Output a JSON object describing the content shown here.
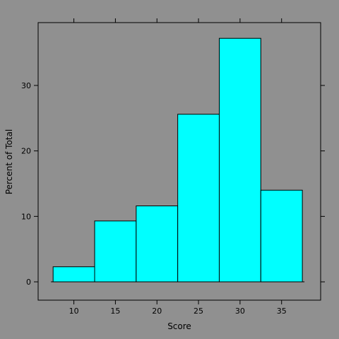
{
  "chart_data": {
    "type": "bar",
    "xlabel": "Score",
    "ylabel": "Percent of Total",
    "bins": [
      {
        "start": 7.5,
        "end": 12.5,
        "value": 2.3
      },
      {
        "start": 12.5,
        "end": 17.5,
        "value": 9.3
      },
      {
        "start": 17.5,
        "end": 22.5,
        "value": 11.6
      },
      {
        "start": 22.5,
        "end": 27.5,
        "value": 25.6
      },
      {
        "start": 27.5,
        "end": 32.5,
        "value": 37.2
      },
      {
        "start": 32.5,
        "end": 37.5,
        "value": 14.0
      }
    ],
    "xlim": [
      5.7,
      39.7
    ],
    "ylim": [
      -2.8,
      39.6
    ],
    "xticks": [
      10,
      15,
      20,
      25,
      30,
      35
    ],
    "yticks": [
      0,
      10,
      20,
      30
    ],
    "bar_color": "#00ffff",
    "grid": false
  }
}
